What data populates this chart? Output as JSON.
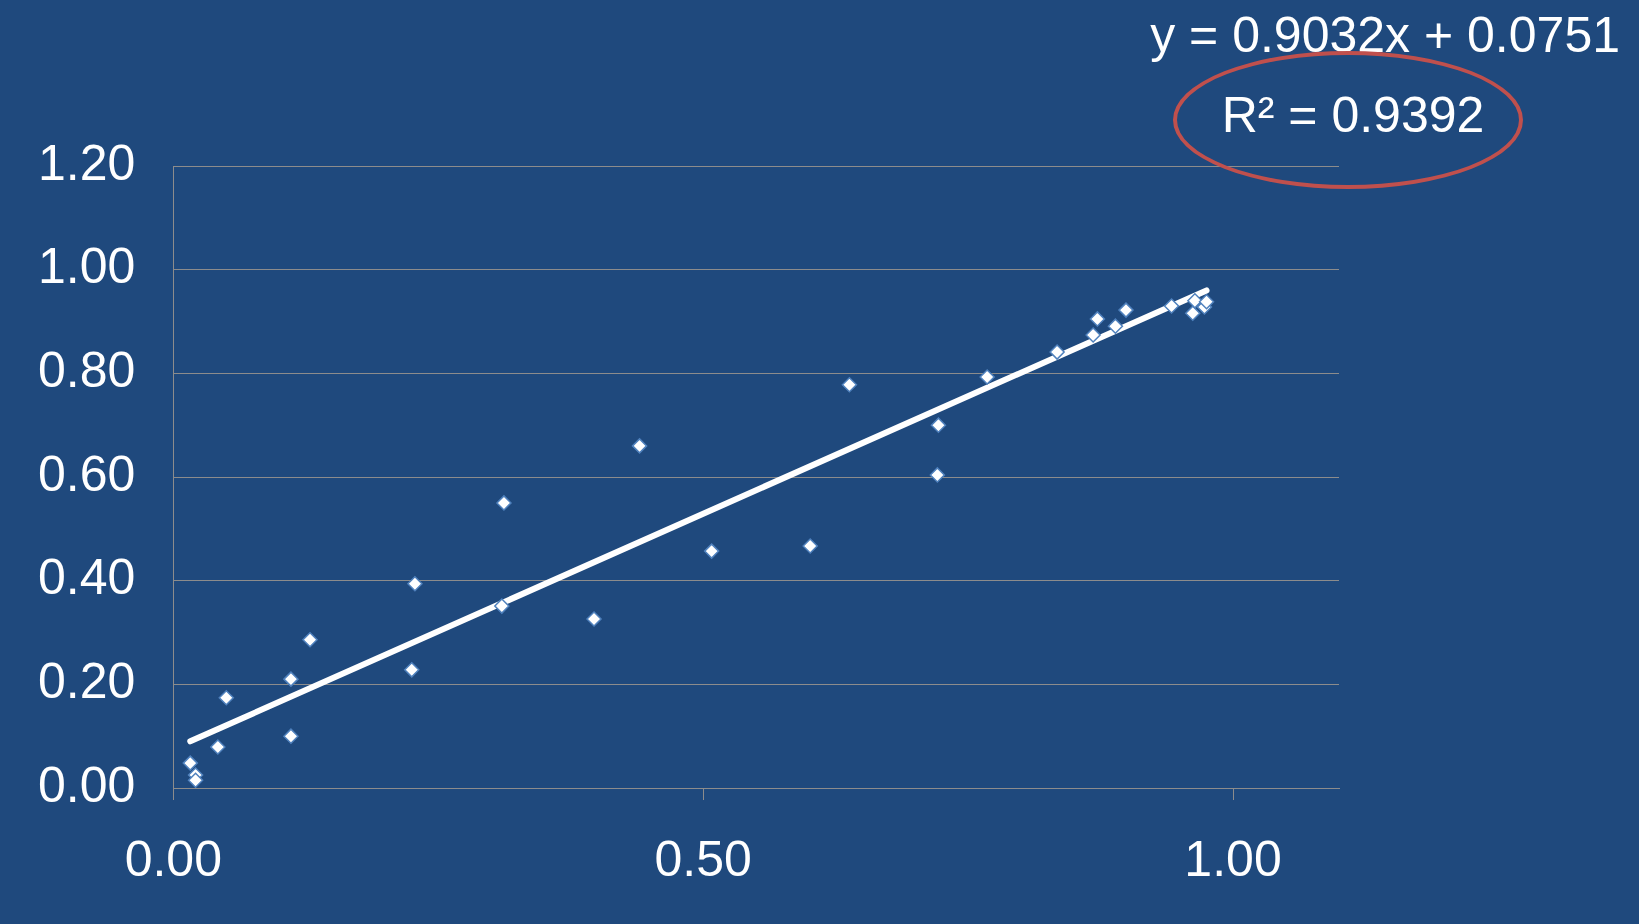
{
  "chart_data": {
    "type": "scatter",
    "xlim": [
      0,
      1.1
    ],
    "ylim": [
      0,
      1.2
    ],
    "xticks": [
      {
        "value": 0,
        "label": "0.00"
      },
      {
        "value": 0.5,
        "label": "0.50"
      },
      {
        "value": 1,
        "label": "1.00"
      }
    ],
    "yticks": [
      {
        "value": 0,
        "label": "0.00"
      },
      {
        "value": 0.2,
        "label": "0.20"
      },
      {
        "value": 0.4,
        "label": "0.40"
      },
      {
        "value": 0.6,
        "label": "0.60"
      },
      {
        "value": 0.8,
        "label": "0.80"
      },
      {
        "value": 1,
        "label": "1.00"
      },
      {
        "value": 1.2,
        "label": "1.20"
      }
    ],
    "grid": "y",
    "legend": false,
    "marker": "diamond",
    "annotations": [
      "y = 0.9032x + 0.0751",
      "R² = 0.9392"
    ],
    "series": [
      {
        "color": "#ffffff",
        "x": [
          0.016,
          0.021,
          0.021,
          0.042,
          0.05,
          0.111,
          0.111,
          0.129,
          0.225,
          0.228,
          0.312,
          0.31,
          0.397,
          0.44,
          0.508,
          0.601,
          0.638,
          0.722,
          0.721,
          0.768,
          0.834,
          0.868,
          0.872,
          0.889,
          0.899,
          0.942,
          0.962,
          0.964,
          0.973,
          0.975
        ],
        "values": [
          0.048,
          0.025,
          0.015,
          0.079,
          0.174,
          0.1,
          0.21,
          0.286,
          0.228,
          0.394,
          0.55,
          0.351,
          0.326,
          0.66,
          0.457,
          0.467,
          0.778,
          0.7,
          0.604,
          0.793,
          0.841,
          0.874,
          0.905,
          0.891,
          0.922,
          0.93,
          0.916,
          0.94,
          0.928,
          0.938
        ]
      },
      {
        "type": "line",
        "color": "#ffffff",
        "marker": "none",
        "x": [
          0.016,
          0.975
        ],
        "values": [
          0.09,
          0.96
        ]
      }
    ]
  }
}
